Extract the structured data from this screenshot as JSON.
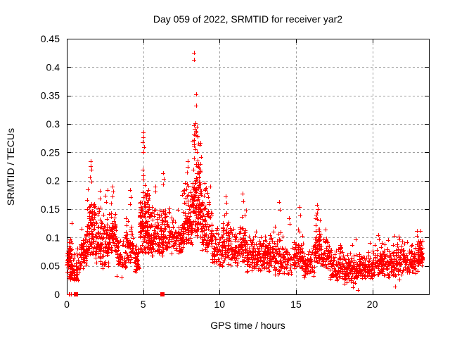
{
  "chart_data": {
    "type": "scatter",
    "title": "Day 059 of 2022, SRMTID for receiver yar2",
    "xlabel": "GPS time / hours",
    "ylabel": "SRMTID / TECUs",
    "xlim": [
      0,
      23.7
    ],
    "ylim": [
      0,
      0.45
    ],
    "xticks": {
      "values": [
        0,
        5,
        10,
        15,
        20
      ],
      "labels": [
        "0",
        "5",
        "10",
        "15",
        "20"
      ]
    },
    "yticks": {
      "values": [
        0,
        0.05,
        0.1,
        0.15,
        0.2,
        0.25,
        0.3,
        0.35,
        0.4,
        0.45
      ],
      "labels": [
        "0",
        "0.05",
        "0.1",
        "0.15",
        "0.2",
        "0.25",
        "0.3",
        "0.35",
        "0.4",
        "0.45"
      ]
    },
    "grid": true,
    "legend": "none",
    "colors": {
      "marker": "#ff0000",
      "grid": "#9e9e9e",
      "axis": "#000000",
      "background": "#ffffff"
    },
    "marker": {
      "shape": "plus",
      "size": 7,
      "color": "#ff0000"
    },
    "seed": 59,
    "segments_comment": "dense scatter envelope read from plot: [hourStart, hourEnd, pointCount, yMin, yMax, lowBiasExponent]",
    "segments": [
      [
        0.02,
        0.4,
        70,
        0.025,
        0.115,
        1.5
      ],
      [
        0.4,
        0.9,
        45,
        0.022,
        0.085,
        1.4
      ],
      [
        0.9,
        1.3,
        55,
        0.045,
        0.125,
        1.5
      ],
      [
        1.3,
        1.8,
        85,
        0.07,
        0.19,
        1.7
      ],
      [
        1.8,
        2.3,
        70,
        0.055,
        0.165,
        1.6
      ],
      [
        2.3,
        2.75,
        55,
        0.045,
        0.15,
        1.5
      ],
      [
        2.75,
        3.3,
        75,
        0.07,
        0.165,
        1.5
      ],
      [
        3.3,
        3.85,
        45,
        0.045,
        0.105,
        1.4
      ],
      [
        3.85,
        4.45,
        65,
        0.055,
        0.145,
        1.5
      ],
      [
        4.45,
        4.75,
        35,
        0.035,
        0.09,
        1.4
      ],
      [
        4.75,
        5.45,
        140,
        0.07,
        0.23,
        1.8
      ],
      [
        5.45,
        6.0,
        70,
        0.065,
        0.17,
        1.5
      ],
      [
        6.0,
        6.6,
        75,
        0.065,
        0.175,
        1.5
      ],
      [
        6.6,
        7.6,
        100,
        0.07,
        0.16,
        1.5
      ],
      [
        7.6,
        8.2,
        95,
        0.085,
        0.21,
        1.6
      ],
      [
        8.2,
        8.8,
        130,
        0.1,
        0.3,
        1.7
      ],
      [
        8.8,
        9.5,
        95,
        0.075,
        0.2,
        1.7
      ],
      [
        9.5,
        10.2,
        70,
        0.045,
        0.125,
        1.5
      ],
      [
        10.2,
        10.6,
        55,
        0.055,
        0.155,
        1.5
      ],
      [
        10.6,
        11.3,
        70,
        0.05,
        0.125,
        1.5
      ],
      [
        11.3,
        11.75,
        55,
        0.055,
        0.15,
        1.5
      ],
      [
        11.75,
        12.5,
        85,
        0.04,
        0.115,
        1.4
      ],
      [
        12.5,
        13.5,
        110,
        0.04,
        0.115,
        1.4
      ],
      [
        13.5,
        14.2,
        70,
        0.03,
        0.135,
        1.5
      ],
      [
        14.2,
        15.0,
        60,
        0.03,
        0.105,
        1.4
      ],
      [
        15.0,
        15.5,
        50,
        0.04,
        0.12,
        1.5
      ],
      [
        15.5,
        16.2,
        55,
        0.028,
        0.09,
        1.4
      ],
      [
        16.2,
        16.6,
        60,
        0.055,
        0.15,
        1.6
      ],
      [
        16.6,
        17.2,
        55,
        0.045,
        0.11,
        1.5
      ],
      [
        17.2,
        18.1,
        90,
        0.022,
        0.09,
        1.4
      ],
      [
        18.1,
        19.1,
        95,
        0.018,
        0.075,
        1.3
      ],
      [
        19.1,
        20.0,
        85,
        0.025,
        0.075,
        1.3
      ],
      [
        20.0,
        21.0,
        90,
        0.03,
        0.1,
        1.5
      ],
      [
        21.0,
        22.0,
        95,
        0.028,
        0.105,
        1.5
      ],
      [
        22.0,
        23.0,
        95,
        0.035,
        0.1,
        1.4
      ],
      [
        23.0,
        23.3,
        55,
        0.05,
        0.105,
        1.5
      ]
    ],
    "outliers": [
      [
        8.35,
        0.425
      ],
      [
        8.35,
        0.413
      ],
      [
        8.45,
        0.352
      ],
      [
        8.48,
        0.332
      ],
      [
        8.32,
        0.298
      ],
      [
        8.38,
        0.291
      ],
      [
        8.42,
        0.301
      ],
      [
        8.46,
        0.287
      ],
      [
        8.52,
        0.295
      ],
      [
        8.55,
        0.279
      ],
      [
        8.35,
        0.272
      ],
      [
        8.6,
        0.265
      ],
      [
        5.0,
        0.285
      ],
      [
        5.02,
        0.276
      ],
      [
        4.97,
        0.268
      ],
      [
        5.05,
        0.259
      ],
      [
        5.0,
        0.251
      ],
      [
        1.55,
        0.234
      ],
      [
        1.57,
        0.226
      ],
      [
        1.6,
        0.219
      ],
      [
        1.52,
        0.206
      ],
      [
        1.63,
        0.198
      ],
      [
        7.9,
        0.234
      ],
      [
        7.93,
        0.224
      ],
      [
        7.87,
        0.214
      ],
      [
        6.32,
        0.213
      ],
      [
        6.35,
        0.203
      ],
      [
        6.29,
        0.193
      ],
      [
        3.0,
        0.19
      ],
      [
        3.03,
        0.181
      ],
      [
        2.97,
        0.172
      ],
      [
        4.15,
        0.184
      ],
      [
        4.18,
        0.171
      ],
      [
        4.12,
        0.159
      ],
      [
        2.55,
        0.174
      ],
      [
        2.58,
        0.162
      ],
      [
        2.68,
        0.183
      ],
      [
        2.15,
        0.182
      ],
      [
        2.17,
        0.168
      ],
      [
        5.78,
        0.19
      ],
      [
        5.81,
        0.181
      ],
      [
        7.55,
        0.175
      ],
      [
        7.7,
        0.183
      ],
      [
        9.03,
        0.196
      ],
      [
        9.07,
        0.185
      ],
      [
        10.42,
        0.172
      ],
      [
        10.45,
        0.161
      ],
      [
        11.5,
        0.177
      ],
      [
        11.53,
        0.164
      ],
      [
        13.9,
        0.162
      ],
      [
        13.93,
        0.149
      ],
      [
        14.55,
        0.134
      ],
      [
        14.58,
        0.124
      ],
      [
        15.25,
        0.154
      ],
      [
        15.28,
        0.139
      ],
      [
        16.4,
        0.157
      ],
      [
        16.43,
        0.15
      ],
      [
        16.37,
        0.144
      ],
      [
        16.95,
        0.114
      ],
      [
        18.7,
        0.087
      ],
      [
        18.9,
        0.097
      ],
      [
        18.75,
        0.012
      ],
      [
        19.05,
        0.008
      ],
      [
        19.85,
        0.09
      ],
      [
        20.8,
        0.088
      ],
      [
        20.4,
        0.104
      ],
      [
        20.45,
        0.097
      ],
      [
        21.5,
        0.014
      ],
      [
        21.75,
        0.026
      ],
      [
        22.9,
        0.112
      ],
      [
        22.93,
        0.103
      ],
      [
        23.15,
        0.112
      ],
      [
        0.3,
        0.125
      ],
      [
        0.97,
        0.115
      ],
      [
        3.25,
        0.032
      ],
      [
        3.6,
        0.03
      ]
    ],
    "zero_plus_x": [
      0.12,
      0.18,
      0.27
    ],
    "zero_square_x": [
      0.58,
      6.25
    ]
  }
}
